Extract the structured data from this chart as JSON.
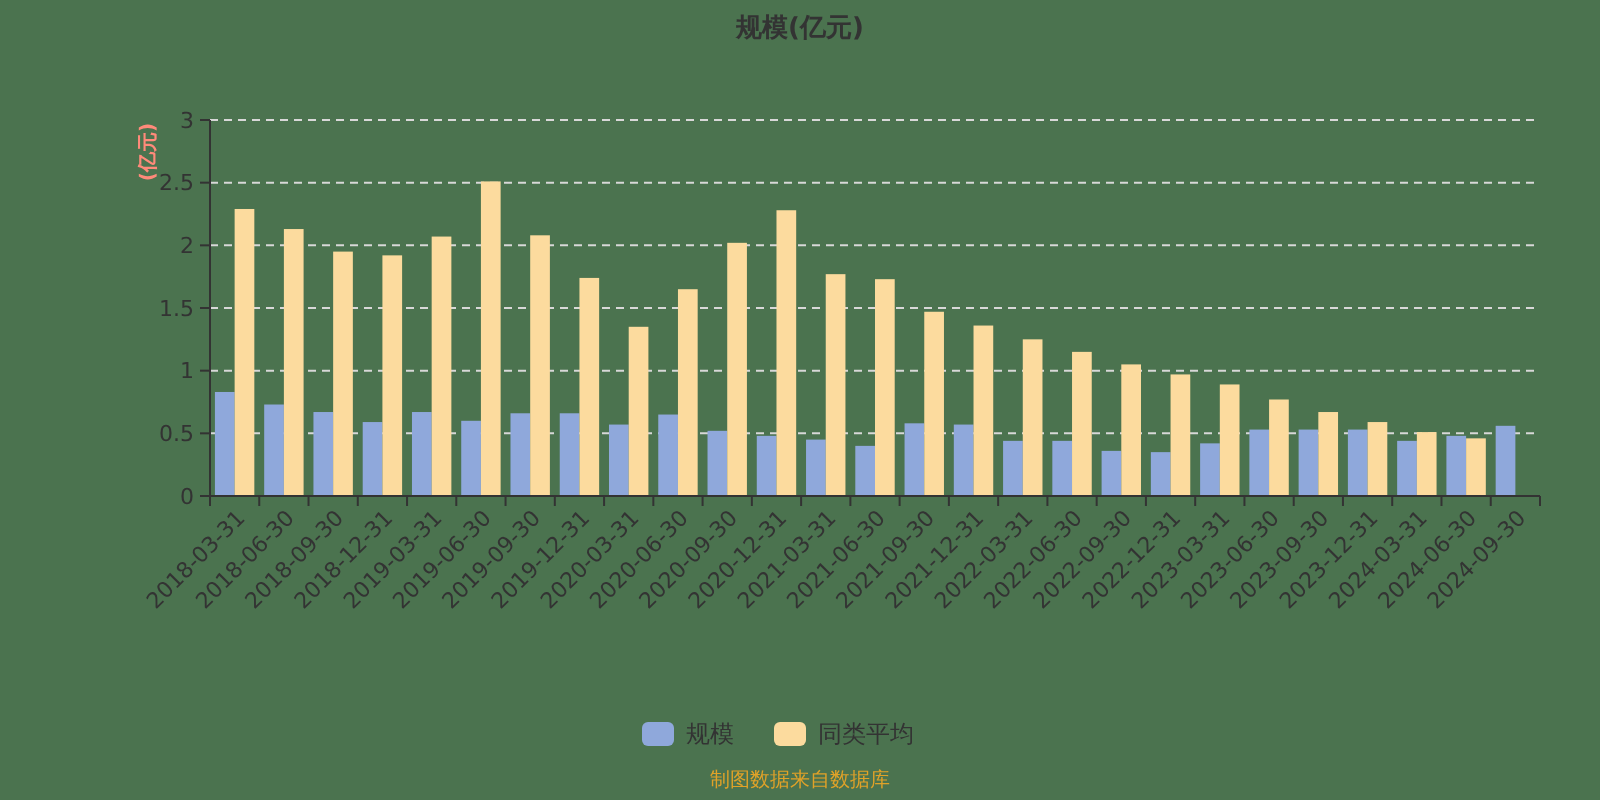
{
  "chart_data": {
    "type": "bar",
    "title": "规模(亿元)",
    "ylabel": "(亿元)",
    "categories": [
      "2018-03-31",
      "2018-06-30",
      "2018-09-30",
      "2018-12-31",
      "2019-03-31",
      "2019-06-30",
      "2019-09-30",
      "2019-12-31",
      "2020-03-31",
      "2020-06-30",
      "2020-09-30",
      "2020-12-31",
      "2021-03-31",
      "2021-06-30",
      "2021-09-30",
      "2021-12-31",
      "2022-03-31",
      "2022-06-30",
      "2022-09-30",
      "2022-12-31",
      "2023-03-31",
      "2023-06-30",
      "2023-09-30",
      "2023-12-31",
      "2024-03-31",
      "2024-06-30",
      "2024-09-30"
    ],
    "series": [
      {
        "name": "规模",
        "color": "#8fa8db",
        "values": [
          0.83,
          0.73,
          0.67,
          0.59,
          0.67,
          0.6,
          0.66,
          0.66,
          0.57,
          0.65,
          0.52,
          0.48,
          0.45,
          0.4,
          0.58,
          0.57,
          0.44,
          0.44,
          0.36,
          0.35,
          0.42,
          0.53,
          0.53,
          0.53,
          0.44,
          0.48,
          0.56
        ]
      },
      {
        "name": "同类平均",
        "color": "#fcdb9e",
        "values": [
          2.29,
          2.13,
          1.95,
          1.92,
          2.07,
          2.51,
          2.08,
          1.74,
          1.35,
          1.65,
          2.02,
          2.28,
          1.77,
          1.73,
          1.47,
          1.36,
          1.25,
          1.15,
          1.05,
          0.97,
          0.89,
          0.77,
          0.67,
          0.59,
          0.51,
          0.46,
          null
        ]
      }
    ],
    "ylim": [
      0,
      3
    ],
    "yticks": [
      0,
      0.5,
      1,
      1.5,
      2,
      2.5,
      3
    ],
    "grid": "y",
    "legend": "bottom",
    "annotations": [
      "制图数据来自数据库"
    ]
  }
}
